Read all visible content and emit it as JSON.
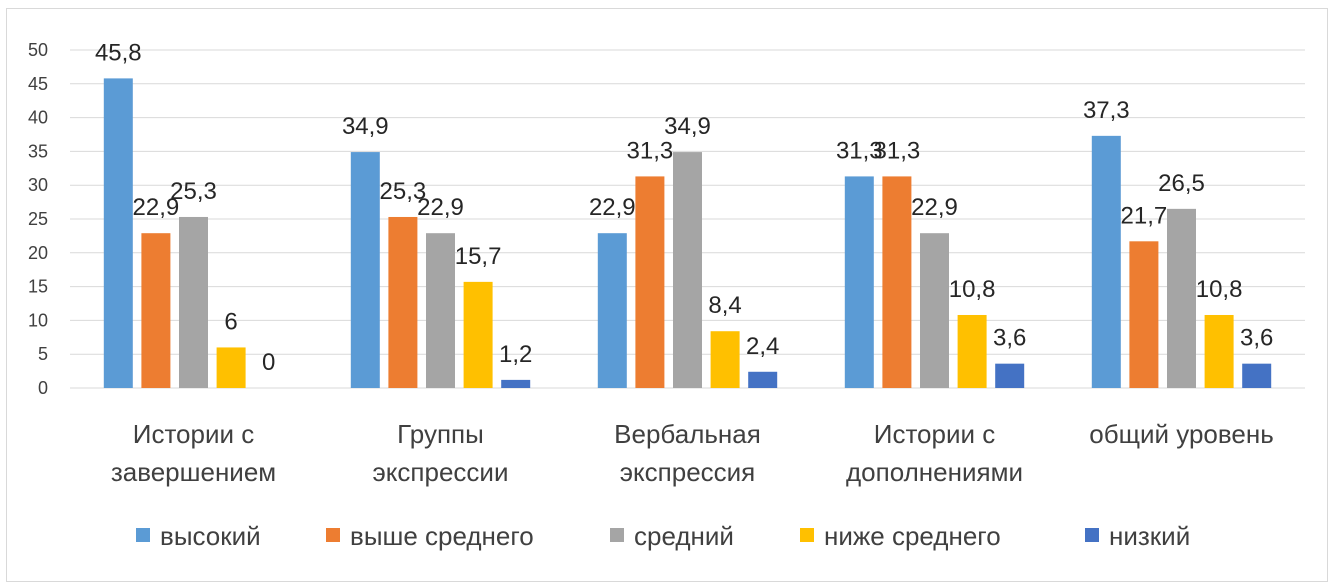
{
  "chart_data": {
    "type": "bar",
    "categories": [
      [
        "Истории с",
        "завершением"
      ],
      [
        "Группы",
        "экспрессии"
      ],
      [
        "Вербальная",
        "экспрессия"
      ],
      [
        "Истории с",
        "дополнениями"
      ],
      [
        "общий уровень"
      ]
    ],
    "series": [
      {
        "name": "высокий",
        "color": "#5b9bd5",
        "values": [
          45.8,
          34.9,
          22.9,
          31.3,
          37.3
        ],
        "labels": [
          "45,8",
          "34,9",
          "22,9",
          "31,3",
          "37,3"
        ]
      },
      {
        "name": "выше среднего",
        "color": "#ed7d31",
        "values": [
          22.9,
          25.3,
          31.3,
          31.3,
          21.7
        ],
        "labels": [
          "22,9",
          "25,3",
          "31,3",
          "31,3",
          "21,7"
        ]
      },
      {
        "name": "средний",
        "color": "#a5a5a5",
        "values": [
          25.3,
          22.9,
          34.9,
          22.9,
          26.5
        ],
        "labels": [
          "25,3",
          "22,9",
          "34,9",
          "22,9",
          "26,5"
        ]
      },
      {
        "name": "ниже среднего",
        "color": "#ffc000",
        "values": [
          6,
          15.7,
          8.4,
          10.8,
          10.8
        ],
        "labels": [
          "6",
          "15,7",
          "8,4",
          "10,8",
          "10,8"
        ]
      },
      {
        "name": "низкий",
        "color": "#4472c4",
        "values": [
          0,
          1.2,
          2.4,
          3.6,
          3.6
        ],
        "labels": [
          "0",
          "1,2",
          "2,4",
          "3,6",
          "3,6"
        ]
      }
    ],
    "ylim": [
      0,
      50
    ],
    "yticks": [
      "0",
      "5",
      "10",
      "15",
      "20",
      "25",
      "30",
      "35",
      "40",
      "45",
      "50"
    ],
    "grid": true,
    "legend": "bottom"
  }
}
